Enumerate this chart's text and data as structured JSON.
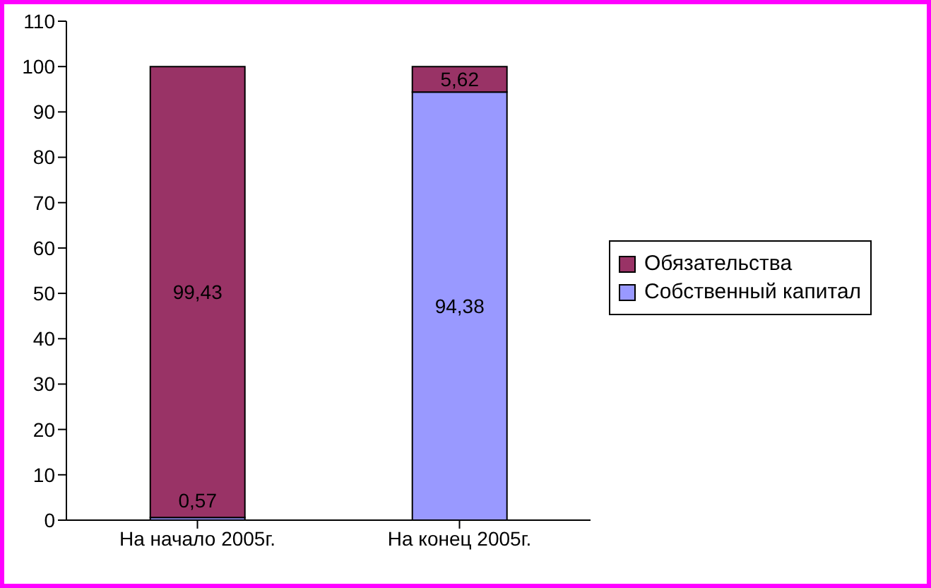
{
  "chart_data": {
    "type": "bar",
    "stacked": true,
    "categories": [
      "На начало 2005г.",
      "На конец 2005г."
    ],
    "series": [
      {
        "name": "Собственный капитал",
        "color": "#9999ff",
        "values": [
          0.57,
          94.38
        ],
        "value_labels": [
          "0,57",
          "94,38"
        ]
      },
      {
        "name": "Обязательства",
        "color": "#993366",
        "values": [
          99.43,
          5.62
        ],
        "value_labels": [
          "99,43",
          "5,62"
        ]
      }
    ],
    "ylim": [
      0,
      110
    ],
    "yticks": [
      0,
      10,
      20,
      30,
      40,
      50,
      60,
      70,
      80,
      90,
      100,
      110
    ],
    "legend": "right"
  }
}
